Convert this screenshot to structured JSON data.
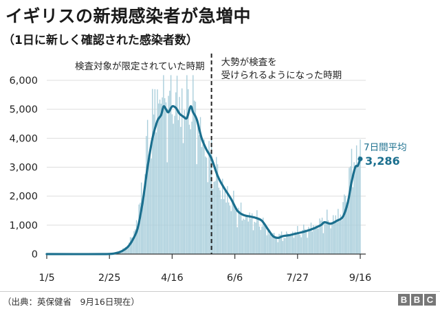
{
  "header": {
    "title": "イギリスの新規感染者が急増中",
    "subtitle": "（1日に新しく確認された感染者数）"
  },
  "footer": {
    "source": "（出典：英保健省　9月16日現在）",
    "logo": [
      "B",
      "B",
      "C"
    ]
  },
  "colors": {
    "bars": "#a9cedb",
    "line": "#1b6f8e",
    "axis": "#333333",
    "grid": "#dddddd",
    "divider": "#222222",
    "label_accent": "#1b6f8e"
  },
  "chart_data": {
    "type": "bar",
    "x_start": "2020-01-05",
    "x_end": "2020-09-16",
    "xticks": [
      "1/5",
      "2/25",
      "4/16",
      "6/6",
      "7/27",
      "9/16"
    ],
    "ylim": [
      0,
      6000
    ],
    "yticks": [
      "0",
      "1,000",
      "2,000",
      "3,000",
      "4,000",
      "5,000",
      "6,000"
    ],
    "grid": true,
    "divider_date": "2020-05-18",
    "annotations": {
      "left_period": "検査対象が限定されていた時期",
      "right_period_line1": "大勢が検査を",
      "right_period_line2": "受けられるようになった時期",
      "avg_label": "7日間平均",
      "avg_value": "3,286"
    },
    "series": [
      {
        "name": "7日間平均",
        "type": "line",
        "points": [
          [
            "2020-01-05",
            0
          ],
          [
            "2020-02-20",
            0
          ],
          [
            "2020-03-01",
            30
          ],
          [
            "2020-03-06",
            100
          ],
          [
            "2020-03-11",
            250
          ],
          [
            "2020-03-15",
            500
          ],
          [
            "2020-03-19",
            900
          ],
          [
            "2020-03-23",
            1800
          ],
          [
            "2020-03-27",
            3000
          ],
          [
            "2020-03-31",
            4000
          ],
          [
            "2020-04-04",
            4600
          ],
          [
            "2020-04-07",
            4800
          ],
          [
            "2020-04-09",
            5100
          ],
          [
            "2020-04-11",
            5000
          ],
          [
            "2020-04-13",
            4900
          ],
          [
            "2020-04-16",
            5100
          ],
          [
            "2020-04-19",
            5050
          ],
          [
            "2020-04-22",
            4850
          ],
          [
            "2020-04-25",
            4750
          ],
          [
            "2020-04-28",
            4700
          ],
          [
            "2020-05-01",
            5100
          ],
          [
            "2020-05-03",
            4900
          ],
          [
            "2020-05-06",
            4650
          ],
          [
            "2020-05-10",
            4000
          ],
          [
            "2020-05-14",
            3600
          ],
          [
            "2020-05-18",
            3300
          ],
          [
            "2020-05-23",
            2700
          ],
          [
            "2020-05-28",
            2300
          ],
          [
            "2020-06-03",
            1900
          ],
          [
            "2020-06-08",
            1500
          ],
          [
            "2020-06-13",
            1350
          ],
          [
            "2020-06-18",
            1300
          ],
          [
            "2020-06-23",
            1250
          ],
          [
            "2020-06-28",
            1150
          ],
          [
            "2020-07-03",
            850
          ],
          [
            "2020-07-07",
            620
          ],
          [
            "2020-07-11",
            560
          ],
          [
            "2020-07-15",
            620
          ],
          [
            "2020-07-20",
            650
          ],
          [
            "2020-07-25",
            700
          ],
          [
            "2020-07-31",
            760
          ],
          [
            "2020-08-05",
            820
          ],
          [
            "2020-08-10",
            900
          ],
          [
            "2020-08-15",
            1000
          ],
          [
            "2020-08-18",
            1100
          ],
          [
            "2020-08-23",
            1050
          ],
          [
            "2020-08-28",
            1150
          ],
          [
            "2020-09-02",
            1300
          ],
          [
            "2020-09-06",
            1800
          ],
          [
            "2020-09-09",
            2500
          ],
          [
            "2020-09-12",
            3000
          ],
          [
            "2020-09-14",
            3050
          ],
          [
            "2020-09-16",
            3286
          ]
        ]
      },
      {
        "name": "1日の感染者数",
        "type": "bar",
        "points": [
          [
            "2020-01-05",
            0
          ],
          [
            "2020-02-24",
            0
          ],
          [
            "2020-03-01",
            25
          ],
          [
            "2020-03-06",
            110
          ],
          [
            "2020-03-11",
            300
          ],
          [
            "2020-03-15",
            650
          ],
          [
            "2020-03-19",
            1200
          ],
          [
            "2020-03-23",
            2300
          ],
          [
            "2020-03-27",
            3700
          ],
          [
            "2020-03-31",
            4600
          ],
          [
            "2020-04-04",
            5300
          ],
          [
            "2020-04-07",
            5600
          ],
          [
            "2020-04-10",
            5400
          ],
          [
            "2020-04-13",
            5000
          ],
          [
            "2020-04-16",
            5500
          ],
          [
            "2020-04-19",
            5300
          ],
          [
            "2020-04-22",
            5000
          ],
          [
            "2020-04-25",
            4900
          ],
          [
            "2020-04-28",
            5100
          ],
          [
            "2020-05-01",
            5400
          ],
          [
            "2020-05-05",
            4800
          ],
          [
            "2020-05-10",
            3900
          ],
          [
            "2020-05-14",
            3400
          ],
          [
            "2020-05-18",
            3200
          ],
          [
            "2020-05-23",
            2600
          ],
          [
            "2020-05-28",
            2100
          ],
          [
            "2020-06-03",
            1800
          ],
          [
            "2020-06-08",
            1500
          ],
          [
            "2020-06-13",
            1300
          ],
          [
            "2020-06-18",
            1250
          ],
          [
            "2020-06-23",
            1150
          ],
          [
            "2020-06-28",
            1050
          ],
          [
            "2020-07-03",
            800
          ],
          [
            "2020-07-07",
            650
          ],
          [
            "2020-07-11",
            580
          ],
          [
            "2020-07-15",
            620
          ],
          [
            "2020-07-20",
            660
          ],
          [
            "2020-07-25",
            720
          ],
          [
            "2020-07-31",
            780
          ],
          [
            "2020-08-05",
            850
          ],
          [
            "2020-08-10",
            950
          ],
          [
            "2020-08-15",
            1050
          ],
          [
            "2020-08-18",
            1150
          ],
          [
            "2020-08-23",
            1100
          ],
          [
            "2020-08-28",
            1250
          ],
          [
            "2020-09-02",
            1500
          ],
          [
            "2020-09-06",
            2400
          ],
          [
            "2020-09-09",
            2900
          ],
          [
            "2020-09-12",
            3400
          ],
          [
            "2020-09-14",
            3100
          ],
          [
            "2020-09-16",
            3700
          ]
        ]
      }
    ]
  }
}
